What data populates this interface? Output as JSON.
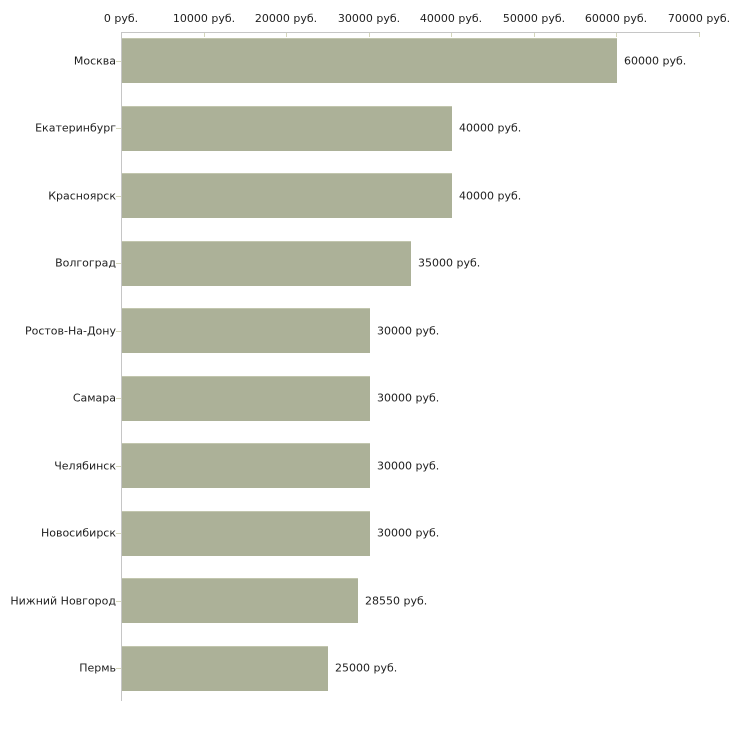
{
  "chart_data": {
    "type": "bar",
    "orientation": "horizontal",
    "title": "",
    "xlabel": "",
    "ylabel": "",
    "x_unit": "руб.",
    "xlim": [
      0,
      70000
    ],
    "grid": false,
    "legend": false,
    "categories": [
      "Москва",
      "Екатеринбург",
      "Красноярск",
      "Волгоград",
      "Ростов-На-Дону",
      "Самара",
      "Челябинск",
      "Новосибирск",
      "Нижний Новгород",
      "Пермь"
    ],
    "values": [
      60000,
      40000,
      40000,
      35000,
      30000,
      30000,
      30000,
      30000,
      28550,
      25000
    ],
    "value_labels": [
      "60000 руб.",
      "40000 руб.",
      "40000 руб.",
      "35000 руб.",
      "30000 руб.",
      "30000 руб.",
      "30000 руб.",
      "30000 руб.",
      "28550 руб.",
      "25000 руб."
    ],
    "x_ticks": [
      0,
      10000,
      20000,
      30000,
      40000,
      50000,
      60000,
      70000
    ],
    "x_tick_labels": [
      "0 руб.",
      "10000 руб.",
      "20000 руб.",
      "30000 руб.",
      "40000 руб.",
      "50000 руб.",
      "60000 руб.",
      "70000 руб."
    ],
    "colors": {
      "bar": "#acb198",
      "bar_highlight": "#c2c6ae",
      "axis": "#c6c6c6",
      "tick": "#d4d6ba",
      "text": "#1f1f1f",
      "background": "#ffffff"
    }
  }
}
